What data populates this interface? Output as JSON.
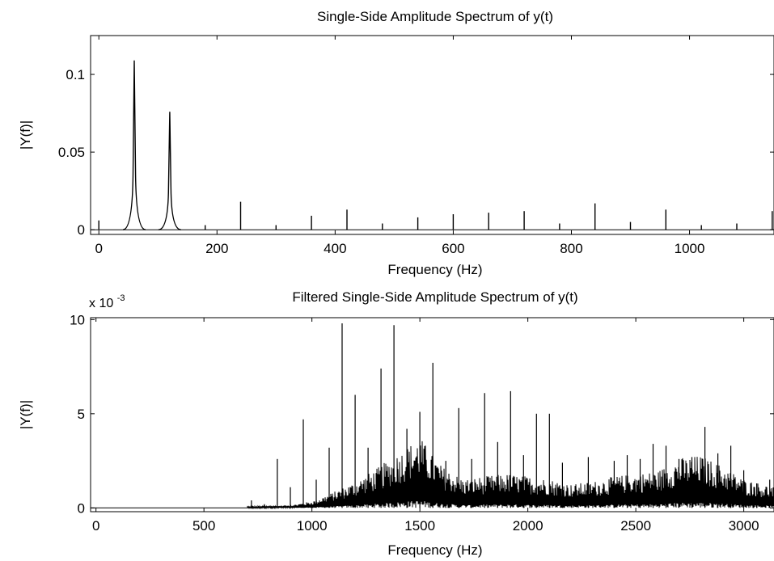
{
  "chart_data": [
    {
      "type": "line",
      "title": "Single-Side Amplitude Spectrum of y(t)",
      "xlabel": "Frequency (Hz)",
      "ylabel": "|Y(f)|",
      "xlim": [
        -14,
        1143
      ],
      "ylim": [
        -0.003,
        0.125
      ],
      "xticks": [
        0,
        200,
        400,
        600,
        800,
        1000
      ],
      "xtick_labels": [
        "0",
        "200",
        "400",
        "600",
        "800",
        "1000"
      ],
      "yticks": [
        0,
        0.05,
        0.1
      ],
      "ytick_labels": [
        "0",
        "0.05",
        "0.1"
      ],
      "grid": false,
      "series": [
        {
          "peaks": [
            {
              "x": 0,
              "y": 0.006
            },
            {
              "x": 60,
              "y": 0.109
            },
            {
              "x": 120,
              "y": 0.076
            },
            {
              "x": 180,
              "y": 0.003
            },
            {
              "x": 240,
              "y": 0.018
            },
            {
              "x": 300,
              "y": 0.003
            },
            {
              "x": 360,
              "y": 0.009
            },
            {
              "x": 420,
              "y": 0.013
            },
            {
              "x": 480,
              "y": 0.004
            },
            {
              "x": 540,
              "y": 0.008
            },
            {
              "x": 600,
              "y": 0.01
            },
            {
              "x": 660,
              "y": 0.011
            },
            {
              "x": 720,
              "y": 0.012
            },
            {
              "x": 780,
              "y": 0.004
            },
            {
              "x": 840,
              "y": 0.017
            },
            {
              "x": 900,
              "y": 0.005
            },
            {
              "x": 960,
              "y": 0.013
            },
            {
              "x": 1020,
              "y": 0.003
            },
            {
              "x": 1080,
              "y": 0.004
            },
            {
              "x": 1140,
              "y": 0.012
            }
          ]
        }
      ]
    },
    {
      "type": "line",
      "title": "Filtered Single-Side Amplitude Spectrum of y(t)",
      "xlabel": "Frequency (Hz)",
      "ylabel": "|Y(f)|",
      "scale_label": "x 10",
      "scale_exponent": "-3",
      "xlim": [
        -25,
        3140
      ],
      "ylim": [
        -0.2,
        10.1
      ],
      "xticks": [
        0,
        500,
        1000,
        1500,
        2000,
        2500,
        3000
      ],
      "xtick_labels": [
        "0",
        "500",
        "1000",
        "1500",
        "2000",
        "2500",
        "3000"
      ],
      "yticks": [
        0,
        5,
        10
      ],
      "ytick_labels": [
        "0",
        "5",
        "10"
      ],
      "grid": false,
      "series": [
        {
          "noise_envelope": [
            [
              700,
              0.05
            ],
            [
              900,
              0.1
            ],
            [
              1000,
              0.25
            ],
            [
              1100,
              0.6
            ],
            [
              1200,
              1.0
            ],
            [
              1300,
              1.5
            ],
            [
              1400,
              2.1
            ],
            [
              1500,
              2.7
            ],
            [
              1600,
              1.6
            ],
            [
              1700,
              1.1
            ],
            [
              1800,
              1.2
            ],
            [
              1900,
              1.3
            ],
            [
              2000,
              1.2
            ],
            [
              2100,
              1.1
            ],
            [
              2200,
              0.9
            ],
            [
              2300,
              1.0
            ],
            [
              2400,
              1.2
            ],
            [
              2500,
              1.3
            ],
            [
              2600,
              1.4
            ],
            [
              2700,
              1.9
            ],
            [
              2800,
              2.0
            ],
            [
              2900,
              1.6
            ],
            [
              3000,
              1.1
            ],
            [
              3140,
              0.8
            ]
          ],
          "peaks": [
            {
              "x": 720,
              "y": 0.4
            },
            {
              "x": 780,
              "y": 0.2
            },
            {
              "x": 840,
              "y": 2.6
            },
            {
              "x": 900,
              "y": 1.1
            },
            {
              "x": 960,
              "y": 4.7
            },
            {
              "x": 1020,
              "y": 1.5
            },
            {
              "x": 1080,
              "y": 3.2
            },
            {
              "x": 1140,
              "y": 9.8
            },
            {
              "x": 1200,
              "y": 6.0
            },
            {
              "x": 1260,
              "y": 3.2
            },
            {
              "x": 1320,
              "y": 7.4
            },
            {
              "x": 1380,
              "y": 9.7
            },
            {
              "x": 1440,
              "y": 4.2
            },
            {
              "x": 1500,
              "y": 5.1
            },
            {
              "x": 1560,
              "y": 7.7
            },
            {
              "x": 1620,
              "y": 2.5
            },
            {
              "x": 1680,
              "y": 5.3
            },
            {
              "x": 1740,
              "y": 2.6
            },
            {
              "x": 1800,
              "y": 6.1
            },
            {
              "x": 1860,
              "y": 3.5
            },
            {
              "x": 1920,
              "y": 6.2
            },
            {
              "x": 1980,
              "y": 2.8
            },
            {
              "x": 2040,
              "y": 5.0
            },
            {
              "x": 2100,
              "y": 5.0
            },
            {
              "x": 2160,
              "y": 2.4
            },
            {
              "x": 2280,
              "y": 2.7
            },
            {
              "x": 2400,
              "y": 2.5
            },
            {
              "x": 2460,
              "y": 2.8
            },
            {
              "x": 2520,
              "y": 2.6
            },
            {
              "x": 2580,
              "y": 3.4
            },
            {
              "x": 2640,
              "y": 3.3
            },
            {
              "x": 2700,
              "y": 2.6
            },
            {
              "x": 2760,
              "y": 2.7
            },
            {
              "x": 2820,
              "y": 4.3
            },
            {
              "x": 2880,
              "y": 2.9
            },
            {
              "x": 2940,
              "y": 3.3
            },
            {
              "x": 3000,
              "y": 2.0
            },
            {
              "x": 3060,
              "y": 1.3
            },
            {
              "x": 3120,
              "y": 1.5
            }
          ]
        }
      ]
    }
  ]
}
